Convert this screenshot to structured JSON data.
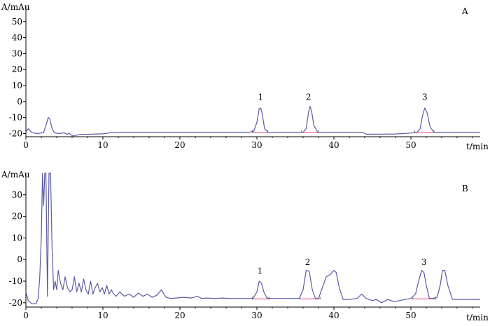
{
  "chart_data": [
    {
      "type": "line",
      "panel_label": "A",
      "ylabel": "A/mAu",
      "xlabel": "t/min",
      "xlim": [
        0,
        59
      ],
      "ylim": [
        -22,
        60
      ],
      "xticks": [
        0,
        10,
        20,
        30,
        40,
        50
      ],
      "yticks": [
        -20,
        -10,
        0,
        10,
        20,
        30,
        40,
        50
      ],
      "grid": false,
      "colors": {
        "trace": "#5a5aa8",
        "baseline": "#e04080"
      },
      "series": [
        {
          "x": [
            0,
            0.3,
            0.8,
            1.5,
            2.3,
            2.6,
            2.9,
            3.1,
            3.4,
            3.7,
            4.2,
            5.0,
            5.4,
            5.6,
            5.9,
            6.2,
            6.6,
            7.2,
            8.0,
            10.0,
            11.0,
            12.5,
            15,
            20,
            25,
            29.0,
            29.6,
            30.0,
            30.3,
            30.5,
            30.7,
            31.0,
            31.5,
            33,
            35,
            36.0,
            36.4,
            36.7,
            36.9,
            37.1,
            37.4,
            37.9,
            39,
            42,
            43.7,
            44.2,
            46,
            48,
            50.0,
            50.8,
            51.2,
            51.5,
            51.8,
            52.1,
            52.5,
            53.0,
            53.6,
            55,
            57,
            59
          ],
          "y": [
            -19,
            -17,
            -19.5,
            -20,
            -19.5,
            -15,
            -10,
            -11,
            -17,
            -19.5,
            -20,
            -19.6,
            -20.5,
            -19.8,
            -21,
            -21.5,
            -21,
            -20.5,
            -20.5,
            -20.2,
            -19.5,
            -19.2,
            -19.2,
            -19.2,
            -19.2,
            -19.2,
            -18.5,
            -13,
            -4.5,
            -4,
            -8,
            -17,
            -19.2,
            -19.2,
            -19.2,
            -19.2,
            -17,
            -7,
            -3,
            -6,
            -15,
            -19.2,
            -19.2,
            -19.2,
            -19.2,
            -20.4,
            -20.4,
            -20.3,
            -19.7,
            -19.2,
            -17,
            -9,
            -4,
            -7,
            -16,
            -19.2,
            -19.2,
            -19.2,
            -19.2,
            -19.2
          ]
        }
      ],
      "baselines": [
        {
          "x": [
            29.4,
            31.4
          ],
          "y": [
            -19.2,
            -19.2
          ]
        },
        {
          "x": [
            35.8,
            38.0
          ],
          "y": [
            -19.2,
            -19.2
          ]
        },
        {
          "x": [
            50.5,
            53.0
          ],
          "y": [
            -19.2,
            -19.2
          ]
        }
      ],
      "annotations": [
        {
          "text": "1",
          "x": 30.5,
          "y": 1
        },
        {
          "text": "2",
          "x": 36.7,
          "y": 1
        },
        {
          "text": "3",
          "x": 51.8,
          "y": 1
        }
      ]
    },
    {
      "type": "line",
      "panel_label": "B",
      "ylabel": "A/mAu",
      "xlabel": "t/min",
      "xlim": [
        0,
        59
      ],
      "ylim": [
        -22,
        40
      ],
      "xticks": [
        0,
        10,
        20,
        30,
        40,
        50
      ],
      "yticks": [
        -20,
        -10,
        0,
        10,
        20,
        30
      ],
      "grid": false,
      "colors": {
        "trace": "#5a5aa8",
        "baseline": "#e04080"
      },
      "series": [
        {
          "x": [
            0,
            0.3,
            0.8,
            1.3,
            1.6,
            1.8,
            2.0,
            2.15,
            2.3,
            2.45,
            2.6,
            2.8,
            3.0,
            3.2,
            3.4,
            3.6,
            3.8,
            4.0,
            4.2,
            4.5,
            4.8,
            5.1,
            5.4,
            5.7,
            6.0,
            6.3,
            6.6,
            6.9,
            7.2,
            7.5,
            7.8,
            8.1,
            8.4,
            8.7,
            9.0,
            9.3,
            9.6,
            9.9,
            10.2,
            10.5,
            10.8,
            11.1,
            11.4,
            11.7,
            12.2,
            12.8,
            13.4,
            14.0,
            14.6,
            15.2,
            15.8,
            16.4,
            17.0,
            17.6,
            18.2,
            18.8,
            19.5,
            20.5,
            21.5,
            22.3,
            22.8,
            23.5,
            24.5,
            25.5,
            26.5,
            27.5,
            28.5,
            29.5,
            30.0,
            30.3,
            30.6,
            30.9,
            31.3,
            31.8,
            32.5,
            33.5,
            34.5,
            35.5,
            36.0,
            36.4,
            36.8,
            37.2,
            37.6,
            38.0,
            38.5,
            39.0,
            39.5,
            40.0,
            40.3,
            40.7,
            41.2,
            42.0,
            43.0,
            43.6,
            44.2,
            45.0,
            45.5,
            46.2,
            47.0,
            47.8,
            48.5,
            49.2,
            50.0,
            50.6,
            51.0,
            51.4,
            51.7,
            52.0,
            52.4,
            52.9,
            53.4,
            53.8,
            54.1,
            54.4,
            54.8,
            55.4,
            56.2,
            57.0,
            58.0,
            59.0
          ],
          "y": [
            -15,
            -19,
            -20.5,
            -20.5,
            -18,
            -8,
            10,
            40,
            25,
            40,
            40,
            -17,
            40,
            40,
            5,
            -14,
            -10,
            -14,
            -5,
            -11,
            -14,
            -8,
            -13,
            -15,
            -14,
            -8,
            -15,
            -11,
            -15,
            -9,
            -14,
            -16,
            -10,
            -16,
            -13,
            -11,
            -15,
            -13,
            -16,
            -12,
            -16,
            -14,
            -16,
            -17,
            -15,
            -17,
            -16,
            -17.5,
            -15.5,
            -17,
            -16,
            -17.5,
            -16.5,
            -14,
            -17.5,
            -18,
            -17.8,
            -17.5,
            -17.8,
            -17,
            -18,
            -17.8,
            -18,
            -17.8,
            -18,
            -18,
            -18,
            -18,
            -15,
            -10,
            -11,
            -15,
            -17.8,
            -18,
            -18,
            -18,
            -18,
            -18,
            -14,
            -5,
            -5.5,
            -14,
            -18,
            -18,
            -13,
            -8,
            -7,
            -5,
            -6,
            -13,
            -18.5,
            -18.5,
            -18,
            -16,
            -18,
            -19,
            -18.5,
            -20,
            -18.5,
            -19.5,
            -19,
            -18.5,
            -18,
            -16,
            -10,
            -5,
            -6,
            -12,
            -18,
            -18,
            -17.5,
            -12,
            -5,
            -5,
            -12,
            -18.5,
            -18.5,
            -18.5,
            -18.5,
            -18.5
          ]
        }
      ],
      "baselines": [
        {
          "x": [
            29.4,
            31.6
          ],
          "y": [
            -18.2,
            -18.2
          ]
        },
        {
          "x": [
            35.6,
            38.2
          ],
          "y": [
            -18.2,
            -18.2
          ]
        },
        {
          "x": [
            50.2,
            53.2
          ],
          "y": [
            -18.2,
            -18.2
          ]
        }
      ],
      "annotations": [
        {
          "text": "1",
          "x": 30.4,
          "y": -6.5
        },
        {
          "text": "2",
          "x": 36.6,
          "y": -2.5
        },
        {
          "text": "3",
          "x": 51.7,
          "y": -2.5
        }
      ]
    }
  ]
}
